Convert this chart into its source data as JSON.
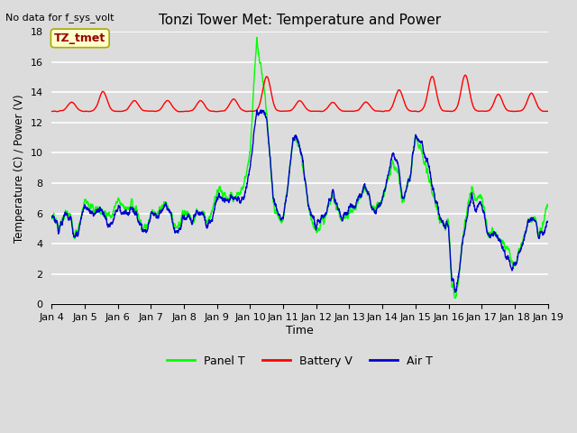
{
  "title": "Tonzi Tower Met: Temperature and Power",
  "top_left_text": "No data for f_sys_volt",
  "xlabel": "Time",
  "ylabel": "Temperature (C) / Power (V)",
  "ylim": [
    0,
    18
  ],
  "yticks": [
    0,
    2,
    4,
    6,
    8,
    10,
    12,
    14,
    16,
    18
  ],
  "xtick_labels": [
    "Jan 4",
    "Jan 5",
    "Jan 6",
    "Jan 7",
    "Jan 8",
    "Jan 9",
    "Jan 10",
    "Jan 11",
    "Jan 12",
    "Jan 13",
    "Jan 14",
    "Jan 15",
    "Jan 16",
    "Jan 17",
    "Jan 18",
    "Jan 19"
  ],
  "bg_color": "#dcdcdc",
  "plot_bg_color": "#dcdcdc",
  "grid_color": "#ffffff",
  "annotation_box_color": "#ffffcc",
  "annotation_text": "TZ_tmet",
  "annotation_text_color": "#990000",
  "legend_items": [
    {
      "label": "Panel T",
      "color": "#00ff00",
      "lw": 1.5
    },
    {
      "label": "Battery V",
      "color": "#ff0000",
      "lw": 1.5
    },
    {
      "label": "Air T",
      "color": "#0000cc",
      "lw": 1.5
    }
  ],
  "panel_t_color": "#00ff00",
  "battery_v_color": "#ff0000",
  "air_t_color": "#0000cc"
}
